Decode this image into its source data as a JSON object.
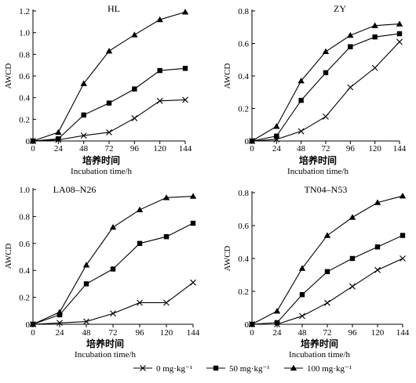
{
  "chart_data": [
    {
      "type": "line",
      "title": "HL",
      "ylabel": "AWCD",
      "xlabel_cn": "培养时间",
      "xlabel": "Incubation time/h",
      "x": [
        0,
        24,
        48,
        72,
        96,
        120,
        144
      ],
      "xticks": [
        "0",
        "24",
        "48",
        "72",
        "96",
        "120",
        "144"
      ],
      "ylim": [
        0,
        1.2
      ],
      "yticks": [
        "0",
        "0.2",
        "0.4",
        "0.6",
        "0.8",
        "1.0",
        "1.2"
      ],
      "series": [
        {
          "name": "0 mg·kg⁻¹",
          "marker": "x",
          "values": [
            0,
            0.01,
            0.05,
            0.08,
            0.21,
            0.37,
            0.38
          ]
        },
        {
          "name": "50 mg·kg⁻¹",
          "marker": "square",
          "values": [
            0,
            0.02,
            0.24,
            0.35,
            0.48,
            0.65,
            0.67
          ]
        },
        {
          "name": "100 mg·kg⁻¹",
          "marker": "triangle",
          "values": [
            0,
            0.08,
            0.53,
            0.83,
            0.98,
            1.12,
            1.19
          ]
        }
      ]
    },
    {
      "type": "line",
      "title": "ZY",
      "ylabel": "AWCD",
      "xlabel_cn": "培养时间",
      "xlabel": "Incubation time/h",
      "x": [
        0,
        24,
        48,
        72,
        96,
        120,
        144
      ],
      "xticks": [
        "0",
        "24",
        "48",
        "72",
        "96",
        "120",
        "144"
      ],
      "ylim": [
        0,
        0.8
      ],
      "yticks": [
        "0",
        "0.2",
        "0.4",
        "0.6",
        "0.8"
      ],
      "series": [
        {
          "name": "0 mg·kg⁻¹",
          "marker": "x",
          "values": [
            0,
            0.01,
            0.06,
            0.15,
            0.33,
            0.45,
            0.61
          ]
        },
        {
          "name": "50 mg·kg⁻¹",
          "marker": "square",
          "values": [
            0,
            0.03,
            0.25,
            0.42,
            0.58,
            0.64,
            0.66
          ]
        },
        {
          "name": "100 mg·kg⁻¹",
          "marker": "triangle",
          "values": [
            0,
            0.09,
            0.37,
            0.55,
            0.65,
            0.71,
            0.72
          ]
        }
      ]
    },
    {
      "type": "line",
      "title": "LA08–N26",
      "ylabel": "AWCD",
      "xlabel_cn": "培养时间",
      "xlabel": "Incubation time/h",
      "x": [
        0,
        24,
        48,
        72,
        96,
        120,
        144
      ],
      "xticks": [
        "0",
        "24",
        "48",
        "72",
        "96",
        "120",
        "144"
      ],
      "ylim": [
        0,
        1.0
      ],
      "yticks": [
        "0",
        "0.2",
        "0.4",
        "0.6",
        "0.8",
        "1.0"
      ],
      "series": [
        {
          "name": "0 mg·kg⁻¹",
          "marker": "x",
          "values": [
            0,
            0.01,
            0.02,
            0.08,
            0.16,
            0.16,
            0.31
          ]
        },
        {
          "name": "50 mg·kg⁻¹",
          "marker": "square",
          "values": [
            0,
            0.07,
            0.3,
            0.41,
            0.6,
            0.65,
            0.75
          ]
        },
        {
          "name": "100 mg·kg⁻¹",
          "marker": "triangle",
          "values": [
            0,
            0.09,
            0.44,
            0.72,
            0.85,
            0.94,
            0.95
          ]
        }
      ]
    },
    {
      "type": "line",
      "title": "TN04–N53",
      "ylabel": "AWCD",
      "xlabel_cn": "培养时间",
      "xlabel": "Incubation time/h",
      "x": [
        0,
        24,
        48,
        72,
        96,
        120,
        144
      ],
      "xticks": [
        "0",
        "24",
        "48",
        "72",
        "96",
        "120",
        "144"
      ],
      "ylim": [
        0,
        0.8
      ],
      "yticks": [
        "0",
        "0.2",
        "0.4",
        "0.6",
        "0.8"
      ],
      "series": [
        {
          "name": "0 mg·kg⁻¹",
          "marker": "x",
          "values": [
            0,
            0.0,
            0.05,
            0.13,
            0.23,
            0.33,
            0.4
          ]
        },
        {
          "name": "50 mg·kg⁻¹",
          "marker": "square",
          "values": [
            0,
            0.01,
            0.18,
            0.32,
            0.4,
            0.47,
            0.54
          ]
        },
        {
          "name": "100 mg·kg⁻¹",
          "marker": "triangle",
          "values": [
            0,
            0.08,
            0.34,
            0.54,
            0.65,
            0.74,
            0.78
          ]
        }
      ]
    }
  ],
  "legend": {
    "placement": "bottom",
    "items": [
      {
        "label": "0 mg·kg⁻¹",
        "marker": "x"
      },
      {
        "label": "50 mg·kg⁻¹",
        "marker": "square"
      },
      {
        "label": "100 mg·kg⁻¹",
        "marker": "triangle"
      }
    ]
  }
}
